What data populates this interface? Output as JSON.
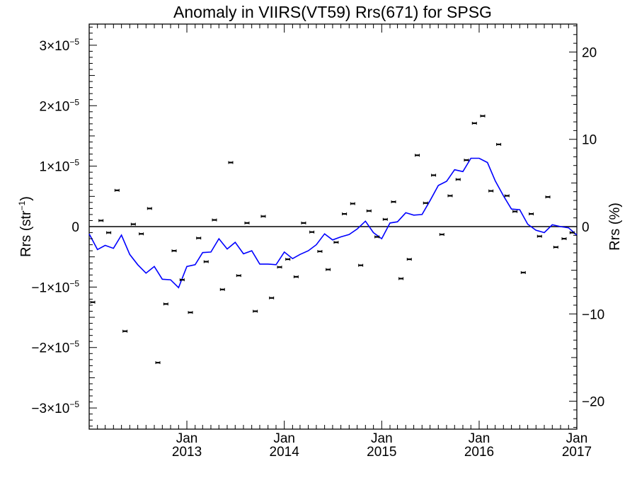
{
  "chart_data": {
    "type": "scatter",
    "title": "Anomaly in VIIRS(VT59) Rrs(671) for SPSG",
    "ylabel_left": "Rrs (str",
    "ylabel_left_sup": "−1",
    "ylabel_left_close": ")",
    "ylabel_right": "Rrs (%)",
    "x_range": [
      "2012-01-01",
      "2017-01-01"
    ],
    "y_left_range": [
      -3.35e-05,
      3.35e-05
    ],
    "y_right_range": [
      -23.2,
      23.2
    ],
    "x_ticks": [
      {
        "date": "2013-01-01",
        "month": "Jan",
        "year": "2013"
      },
      {
        "date": "2014-01-01",
        "month": "Jan",
        "year": "2014"
      },
      {
        "date": "2015-01-01",
        "month": "Jan",
        "year": "2015"
      },
      {
        "date": "2016-01-01",
        "month": "Jan",
        "year": "2016"
      },
      {
        "date": "2017-01-01",
        "month": "Jan",
        "year": "2017"
      }
    ],
    "y_left_ticks": [
      {
        "value": 3e-05,
        "mant": "3×10",
        "exp": "−5"
      },
      {
        "value": 2e-05,
        "mant": "2×10",
        "exp": "−5"
      },
      {
        "value": 1e-05,
        "mant": "1×10",
        "exp": "−5"
      },
      {
        "value": 0,
        "mant": "0",
        "exp": ""
      },
      {
        "value": -1e-05,
        "mant": "−1×10",
        "exp": "−5"
      },
      {
        "value": -2e-05,
        "mant": "−2×10",
        "exp": "−5"
      },
      {
        "value": -3e-05,
        "mant": "−3×10",
        "exp": "−5"
      }
    ],
    "y_right_ticks": [
      {
        "value": 20,
        "label": "20"
      },
      {
        "value": 10,
        "label": "10"
      },
      {
        "value": 0,
        "label": "0"
      },
      {
        "value": -10,
        "label": "−10"
      },
      {
        "value": -20,
        "label": "−20"
      }
    ],
    "zero_line": true,
    "grid": false,
    "series": [
      {
        "kind": "points",
        "color": "#000000",
        "x": [
          "2012-01-01",
          "2012-02-01",
          "2012-03-01",
          "2012-04-01",
          "2012-05-01",
          "2012-06-01",
          "2012-07-01",
          "2012-08-01",
          "2012-09-01",
          "2012-10-01",
          "2012-11-01",
          "2012-12-01",
          "2013-01-01",
          "2013-02-01",
          "2013-03-01",
          "2013-04-01",
          "2013-05-01",
          "2013-06-01",
          "2013-07-01",
          "2013-08-01",
          "2013-09-01",
          "2013-10-01",
          "2013-11-01",
          "2013-12-01",
          "2014-01-01",
          "2014-02-01",
          "2014-03-01",
          "2014-04-01",
          "2014-05-01",
          "2014-06-01",
          "2014-07-01",
          "2014-08-01",
          "2014-09-01",
          "2014-10-01",
          "2014-11-01",
          "2014-12-01",
          "2015-01-01",
          "2015-02-01",
          "2015-03-01",
          "2015-04-01",
          "2015-05-01",
          "2015-06-01",
          "2015-07-01",
          "2015-08-01",
          "2015-09-01",
          "2015-10-01",
          "2015-11-01",
          "2015-12-01",
          "2016-01-01",
          "2016-02-01",
          "2016-03-01",
          "2016-04-01",
          "2016-05-01",
          "2016-06-01",
          "2016-07-01",
          "2016-08-01",
          "2016-09-01",
          "2016-10-01",
          "2016-11-01",
          "2016-12-01"
        ],
        "y": [
          -1.25e-05,
          1e-06,
          -1e-06,
          6e-06,
          -1.73e-05,
          4e-07,
          -1.2e-06,
          3e-06,
          -2.25e-05,
          -1.28e-05,
          -4e-06,
          -8.8e-06,
          -1.42e-05,
          -1.9e-06,
          -5.8e-06,
          1.1e-06,
          -1.04e-05,
          1.06e-05,
          -8.1e-06,
          6e-07,
          -1.4e-05,
          1.7e-06,
          -1.18e-05,
          -6.7e-06,
          -5.4e-06,
          -8.3e-06,
          6e-07,
          -9e-07,
          -4.1e-06,
          -7.1e-06,
          -2.6e-06,
          2.1e-06,
          3.8e-06,
          -6.4e-06,
          2.6e-06,
          -1.7e-06,
          1.2e-06,
          4.1e-06,
          -8.6e-06,
          -5.4e-06,
          1.18e-05,
          3.9e-06,
          8.5e-06,
          -1.3e-06,
          5.1e-06,
          7.8e-06,
          1.1e-05,
          1.71e-05,
          1.83e-05,
          5.9e-06,
          1.36e-05,
          5.1e-06,
          2.5e-06,
          -7.6e-06,
          2.1e-06,
          -1.6e-06,
          4.9e-06,
          -3.4e-06,
          -2e-06,
          -1e-06
        ]
      },
      {
        "kind": "line",
        "color": "#0000ff",
        "x": [
          "2012-01-01",
          "2012-02-01",
          "2012-03-01",
          "2012-04-01",
          "2012-05-01",
          "2012-06-01",
          "2012-07-01",
          "2012-08-01",
          "2012-09-01",
          "2012-10-01",
          "2012-11-01",
          "2012-12-01",
          "2013-01-01",
          "2013-02-01",
          "2013-03-01",
          "2013-04-01",
          "2013-05-01",
          "2013-06-01",
          "2013-07-01",
          "2013-08-01",
          "2013-09-01",
          "2013-10-01",
          "2013-11-01",
          "2013-12-01",
          "2014-01-01",
          "2014-02-01",
          "2014-03-01",
          "2014-04-01",
          "2014-05-01",
          "2014-06-01",
          "2014-07-01",
          "2014-08-01",
          "2014-09-01",
          "2014-10-01",
          "2014-11-01",
          "2014-12-01",
          "2015-01-01",
          "2015-02-01",
          "2015-03-01",
          "2015-04-01",
          "2015-05-01",
          "2015-06-01",
          "2015-07-01",
          "2015-08-01",
          "2015-09-01",
          "2015-10-01",
          "2015-11-01",
          "2015-12-01",
          "2016-01-01",
          "2016-02-01",
          "2016-03-01",
          "2016-04-01",
          "2016-05-01",
          "2016-06-01",
          "2016-07-01",
          "2016-08-01",
          "2016-09-01",
          "2016-10-01",
          "2016-11-01",
          "2016-12-01",
          "2017-01-01"
        ],
        "y": [
          -1.2e-06,
          -3.8e-06,
          -3.1e-06,
          -3.6e-06,
          -1.4e-06,
          -4.6e-06,
          -6.3e-06,
          -7.7e-06,
          -6.6e-06,
          -8.7e-06,
          -8.8e-06,
          -1.01e-05,
          -6.6e-06,
          -6.3e-06,
          -4.3e-06,
          -4.2e-06,
          -2e-06,
          -3.7e-06,
          -2.6e-06,
          -4.5e-06,
          -4e-06,
          -6.2e-06,
          -6.2e-06,
          -6.3e-06,
          -4.2e-06,
          -5.3e-06,
          -4.6e-06,
          -4e-06,
          -3e-06,
          -1.2e-06,
          -2.2e-06,
          -1.7e-06,
          -1.3e-06,
          -4e-07,
          9e-07,
          -1e-06,
          -2e-06,
          6e-07,
          8e-07,
          2.3e-06,
          1.9e-06,
          2e-06,
          4.3e-06,
          6.8e-06,
          7.5e-06,
          9.4e-06,
          9.1e-06,
          1.13e-05,
          1.13e-05,
          1.06e-05,
          7.6e-06,
          5.1e-06,
          2.9e-06,
          2.8e-06,
          4e-07,
          -6e-07,
          -1e-06,
          3e-07,
          0.0,
          -2e-07,
          -1.4e-06
        ]
      }
    ]
  }
}
